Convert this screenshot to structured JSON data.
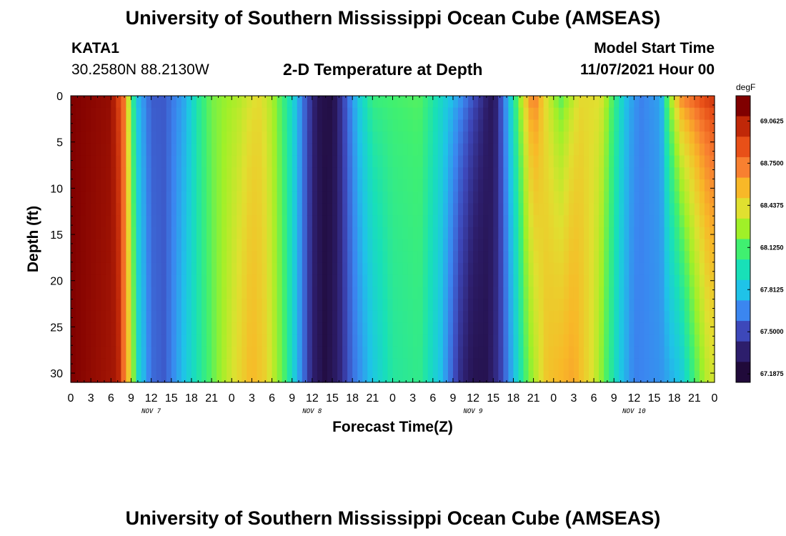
{
  "header": {
    "title": "University of Southern Mississippi Ocean Cube (AMSEAS)",
    "station": "KATA1",
    "coordinates": "30.2580N  88.2130W",
    "subtitle": "2-D Temperature at Depth",
    "model_label": "Model Start Time",
    "model_time": "11/07/2021 Hour 00"
  },
  "footer": {
    "title": "University of Southern Mississippi Ocean Cube (AMSEAS)"
  },
  "chart_data": {
    "type": "heatmap",
    "title": "2-D Temperature at Depth",
    "xlabel": "Forecast Time(Z)",
    "ylabel": "Depth (ft)",
    "units": "degF",
    "xlim_hours": [
      0,
      96
    ],
    "ylim_ft": [
      0,
      31
    ],
    "x_tick_labels": [
      "0",
      "3",
      "6",
      "9",
      "12",
      "15",
      "18",
      "21",
      "0",
      "3",
      "6",
      "9",
      "12",
      "15",
      "18",
      "21",
      "0",
      "3",
      "6",
      "9",
      "12",
      "15",
      "18",
      "21",
      "0",
      "3",
      "6",
      "9",
      "12",
      "15",
      "18",
      "21",
      "0"
    ],
    "y_ticks": [
      0,
      5,
      10,
      15,
      20,
      25,
      30
    ],
    "day_labels": [
      {
        "label": "NOV 7",
        "hour": 12
      },
      {
        "label": "NOV 8",
        "hour": 36
      },
      {
        "label": "NOV 9",
        "hour": 60
      },
      {
        "label": "NOV 10",
        "hour": 84
      }
    ],
    "colorbar": {
      "label": "degF",
      "ticks": [
        "69.0625",
        "68.7500",
        "68.4375",
        "68.1250",
        "67.8125",
        "67.5000",
        "67.1875"
      ],
      "min": 67.125,
      "max": 69.25,
      "colors": [
        "#200a3a",
        "#2d1e6c",
        "#3d48ba",
        "#3b86f0",
        "#1fc3e8",
        "#18e0b8",
        "#40f070",
        "#a0f028",
        "#e0e030",
        "#f8b828",
        "#f88030",
        "#e85018",
        "#c02808",
        "#800000"
      ]
    },
    "surface_temperature_by_hour": [
      [
        0,
        69.25
      ],
      [
        6,
        69.2
      ],
      [
        8,
        68.8
      ],
      [
        9,
        68.1
      ],
      [
        10,
        67.75
      ],
      [
        12,
        67.5
      ],
      [
        14,
        67.5
      ],
      [
        17,
        67.7
      ],
      [
        19,
        68.0
      ],
      [
        21,
        68.2
      ],
      [
        25,
        68.3
      ],
      [
        28,
        68.45
      ],
      [
        30,
        68.3
      ],
      [
        33,
        67.9
      ],
      [
        35,
        67.5
      ],
      [
        37,
        67.2
      ],
      [
        39,
        67.15
      ],
      [
        41,
        67.5
      ],
      [
        43,
        67.85
      ],
      [
        45,
        68.1
      ],
      [
        52,
        68.15
      ],
      [
        58,
        67.7
      ],
      [
        60,
        67.5
      ],
      [
        62,
        67.3
      ],
      [
        63,
        67.2
      ],
      [
        65,
        67.7
      ],
      [
        68,
        68.6
      ],
      [
        69,
        68.85
      ],
      [
        71,
        68.4
      ],
      [
        73,
        68.1
      ],
      [
        76,
        68.45
      ],
      [
        79,
        68.45
      ],
      [
        81,
        68.1
      ],
      [
        83,
        67.75
      ],
      [
        85,
        67.6
      ],
      [
        88,
        67.7
      ],
      [
        89,
        68.2
      ],
      [
        91,
        68.8
      ],
      [
        94,
        69.0
      ],
      [
        96,
        69.1
      ]
    ],
    "bottom_temperature_by_hour": [
      [
        0,
        69.25
      ],
      [
        7,
        69.15
      ],
      [
        9,
        68.4
      ],
      [
        10,
        67.9
      ],
      [
        12,
        67.55
      ],
      [
        14,
        67.5
      ],
      [
        17,
        67.8
      ],
      [
        21,
        68.15
      ],
      [
        24,
        68.4
      ],
      [
        27,
        68.6
      ],
      [
        29,
        68.5
      ],
      [
        32,
        68.1
      ],
      [
        34,
        67.7
      ],
      [
        36,
        67.3
      ],
      [
        38,
        67.15
      ],
      [
        40,
        67.3
      ],
      [
        42,
        67.55
      ],
      [
        45,
        67.8
      ],
      [
        48,
        68.0
      ],
      [
        52,
        68.05
      ],
      [
        55,
        67.8
      ],
      [
        58,
        67.35
      ],
      [
        60,
        67.2
      ],
      [
        62,
        67.2
      ],
      [
        64,
        67.4
      ],
      [
        66,
        67.75
      ],
      [
        68,
        68.15
      ],
      [
        71,
        68.55
      ],
      [
        75,
        68.65
      ],
      [
        78,
        68.4
      ],
      [
        80,
        68.1
      ],
      [
        82,
        67.8
      ],
      [
        84,
        67.6
      ],
      [
        88,
        67.65
      ],
      [
        91,
        67.8
      ],
      [
        93,
        68.1
      ],
      [
        95,
        68.35
      ],
      [
        96,
        68.4
      ]
    ]
  }
}
